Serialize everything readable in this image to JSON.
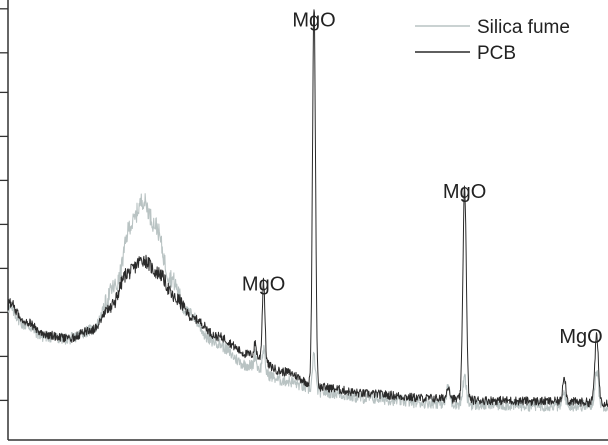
{
  "chart_data": {
    "type": "line",
    "title": "",
    "xlabel": "",
    "ylabel": "",
    "xlim": [
      0,
      100
    ],
    "ylim": [
      0,
      100
    ],
    "grid": false,
    "legend_position": "top-right",
    "y_tick_values": [
      9,
      19,
      29,
      39,
      49,
      59,
      69,
      79,
      88,
      98
    ],
    "series": [
      {
        "name": "Silica fume",
        "color": "#b9c3c3",
        "baseline": [
          [
            0,
            30
          ],
          [
            3,
            26
          ],
          [
            6,
            23.5
          ],
          [
            10,
            23
          ],
          [
            14,
            25
          ],
          [
            18,
            35
          ],
          [
            20.5,
            49
          ],
          [
            22.5,
            54.5
          ],
          [
            24.5,
            49
          ],
          [
            27,
            37
          ],
          [
            30,
            29
          ],
          [
            34,
            22.5
          ],
          [
            40,
            17
          ],
          [
            46,
            13.5
          ],
          [
            52,
            11
          ],
          [
            60,
            9.5
          ],
          [
            70,
            8.5
          ],
          [
            80,
            8
          ],
          [
            90,
            7.8
          ],
          [
            100,
            7.8
          ]
        ],
        "noise": 1.3,
        "peaks": [
          [
            41.2,
            3,
            0.18
          ],
          [
            42.6,
            5,
            0.22
          ],
          [
            51,
            8,
            0.25
          ],
          [
            73.4,
            4,
            0.25
          ],
          [
            76.1,
            6,
            0.28
          ],
          [
            92.7,
            3,
            0.25
          ],
          [
            98.1,
            8,
            0.3
          ]
        ]
      },
      {
        "name": "PCB",
        "color": "#2a2a2a",
        "baseline": [
          [
            0,
            31
          ],
          [
            3,
            27
          ],
          [
            6,
            24
          ],
          [
            10,
            23
          ],
          [
            14,
            25
          ],
          [
            17,
            30
          ],
          [
            20,
            38
          ],
          [
            22.5,
            41
          ],
          [
            25,
            38
          ],
          [
            28,
            32
          ],
          [
            31,
            27.5
          ],
          [
            35,
            23.5
          ],
          [
            40,
            19.5
          ],
          [
            46,
            15.5
          ],
          [
            52,
            12
          ],
          [
            60,
            10.5
          ],
          [
            70,
            9.5
          ],
          [
            80,
            9
          ],
          [
            90,
            8.8
          ],
          [
            100,
            8.5
          ]
        ],
        "noise": 1.0,
        "peaks": [
          [
            41.2,
            3,
            0.18
          ],
          [
            42.6,
            18.5,
            0.22
          ],
          [
            51,
            87,
            0.25
          ],
          [
            73.4,
            3,
            0.25
          ],
          [
            76.1,
            49,
            0.28
          ],
          [
            92.7,
            6,
            0.25
          ],
          [
            98.1,
            15,
            0.3
          ]
        ]
      }
    ],
    "annotations": [
      {
        "text": "MgO",
        "x": 51,
        "y": 94
      },
      {
        "text": "MgO",
        "x": 42.6,
        "y": 34
      },
      {
        "text": "MgO",
        "x": 76.1,
        "y": 55
      },
      {
        "text": "MgO",
        "x": 95.5,
        "y": 22
      }
    ]
  }
}
